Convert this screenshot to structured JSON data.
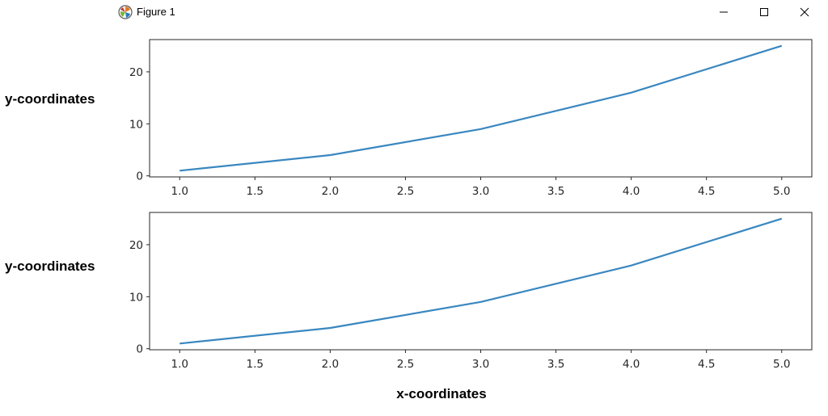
{
  "window": {
    "title": "Figure 1",
    "icon": "matplotlib-icon",
    "controls": [
      "minimize-icon",
      "maximize-icon",
      "close-icon"
    ]
  },
  "chart_data": [
    {
      "type": "line",
      "x": [
        1.0,
        2.0,
        3.0,
        4.0,
        5.0
      ],
      "series": [
        {
          "values": [
            1,
            4,
            9,
            16,
            25
          ],
          "color": "#3a87c0"
        }
      ],
      "xlabel": "",
      "ylabel": "y-coordinates",
      "xticks": [
        "1.0",
        "1.5",
        "2.0",
        "2.5",
        "3.0",
        "3.5",
        "4.0",
        "4.5",
        "5.0"
      ],
      "yticks": [
        "0",
        "10",
        "20"
      ],
      "xlim": [
        0.8,
        5.2
      ],
      "ylim": [
        -0.2,
        26.2
      ],
      "grid": false
    },
    {
      "type": "line",
      "x": [
        1.0,
        2.0,
        3.0,
        4.0,
        5.0
      ],
      "series": [
        {
          "values": [
            1,
            4,
            9,
            16,
            25
          ],
          "color": "#3a87c0"
        }
      ],
      "xlabel": "x-coordinates",
      "ylabel": "y-coordinates",
      "xticks": [
        "1.0",
        "1.5",
        "2.0",
        "2.5",
        "3.0",
        "3.5",
        "4.0",
        "4.5",
        "5.0"
      ],
      "yticks": [
        "0",
        "10",
        "20"
      ],
      "xlim": [
        0.8,
        5.2
      ],
      "ylim": [
        -0.2,
        26.2
      ],
      "grid": false
    }
  ]
}
